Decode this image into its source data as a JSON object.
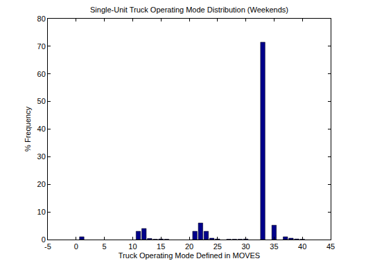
{
  "chart_data": {
    "type": "bar",
    "title": "Single-Unit Truck Operating Mode Distribution (Weekends)",
    "x_label": "Truck Operating Mode Defined in MOVES",
    "y_label": "% Frequency",
    "x": [
      1,
      11,
      12,
      13,
      14,
      15,
      16,
      21,
      22,
      23,
      24,
      25,
      27,
      28,
      29,
      30,
      33,
      35,
      37,
      38,
      39,
      40
    ],
    "values": [
      1.0,
      3.0,
      4.0,
      0.4,
      0.1,
      0.2,
      0.1,
      3.0,
      6.0,
      3.0,
      0.5,
      0.2,
      0.1,
      0.1,
      0.1,
      0.2,
      71.5,
      5.2,
      1.0,
      0.5,
      0.2,
      0.1
    ],
    "color": "#00008b",
    "xlim": [
      -5,
      45
    ],
    "xticks": [
      -5,
      0,
      5,
      10,
      15,
      20,
      25,
      30,
      35,
      40,
      45
    ],
    "ylim": [
      0,
      80
    ],
    "yticks": [
      0,
      10,
      20,
      30,
      40,
      50,
      60,
      70,
      80
    ],
    "grid": false
  }
}
